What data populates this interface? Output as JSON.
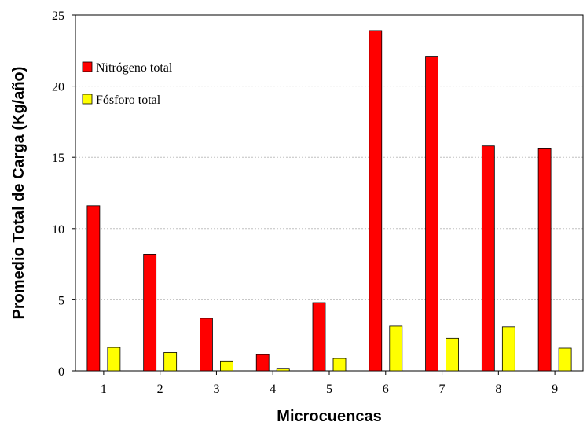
{
  "chart_data": {
    "type": "bar",
    "title": "",
    "xlabel": "Microcuencas",
    "ylabel": "Promedio Total de Carga (Kg/año)",
    "categories": [
      "1",
      "2",
      "3",
      "4",
      "5",
      "6",
      "7",
      "8",
      "9"
    ],
    "series": [
      {
        "name": "Nitrógeno total",
        "color": "#ff0000",
        "values": [
          11.6,
          8.2,
          3.7,
          1.15,
          4.8,
          23.9,
          22.1,
          15.8,
          15.65
        ]
      },
      {
        "name": "Fósforo total",
        "color": "#ffff00",
        "values": [
          1.65,
          1.3,
          0.7,
          0.18,
          0.88,
          3.15,
          2.3,
          3.1,
          1.6
        ]
      }
    ],
    "ylim": [
      0,
      25
    ],
    "yticks": [
      0,
      5,
      10,
      15,
      20,
      25
    ],
    "grid": true,
    "legend": "top-left"
  }
}
